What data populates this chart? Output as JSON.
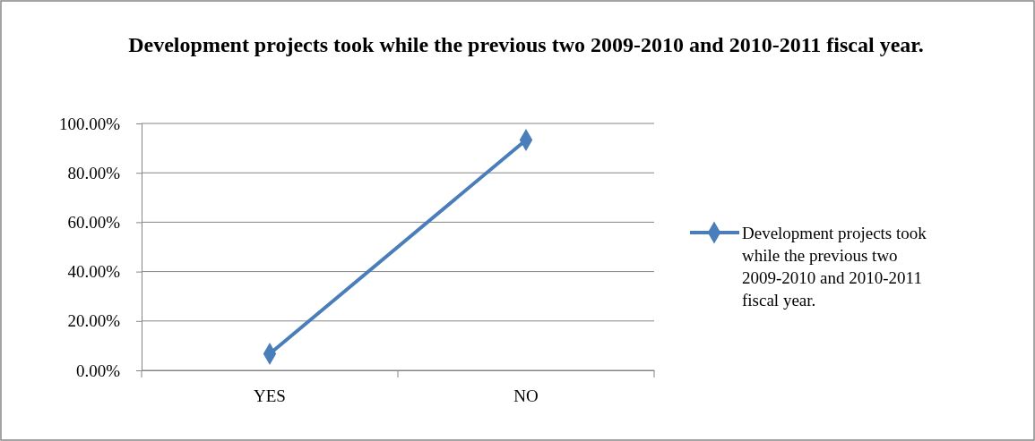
{
  "chart_data": {
    "type": "line",
    "title": "Development projects took while the previous two 2009-2010 and 2010-2011 fiscal year.",
    "categories": [
      "YES",
      "NO"
    ],
    "series": [
      {
        "name": "Development projects took while the previous two 2009-2010 and 2010-2011 fiscal year.",
        "color": "#4a7ebb",
        "values": [
          6.7,
          93.3
        ]
      }
    ],
    "ylim": [
      0,
      100
    ],
    "yticks": [
      {
        "value": 0,
        "label": "0.00%"
      },
      {
        "value": 20,
        "label": "20.00%"
      },
      {
        "value": 40,
        "label": "40.00%"
      },
      {
        "value": 60,
        "label": "60.00%"
      },
      {
        "value": 80,
        "label": "80.00%"
      },
      {
        "value": 100,
        "label": "100.00%"
      }
    ],
    "grid": "y",
    "legend": "right",
    "marker": "diamond",
    "line_style": "solid"
  }
}
